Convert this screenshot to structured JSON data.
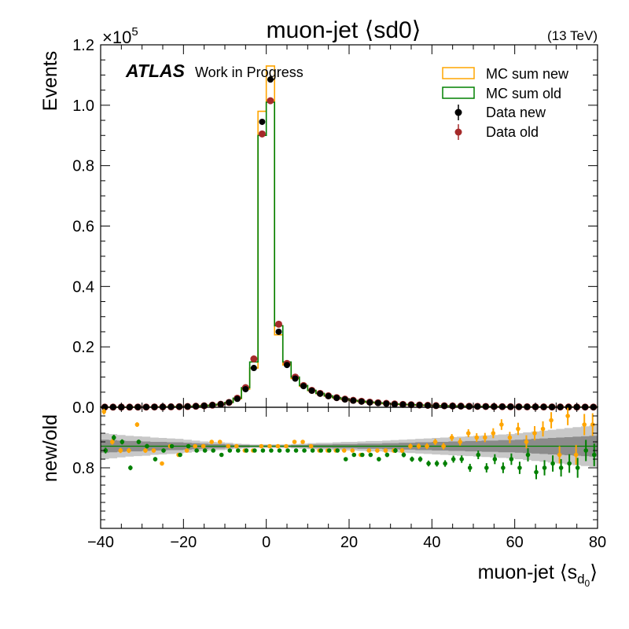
{
  "chart_data": {
    "type": "histogram-ratio",
    "title": "muon-jet ⟨sd0⟩",
    "energy_label": "(13 TeV)",
    "experiment_label": "ATLAS",
    "experiment_sublabel": "Work in Progress",
    "xlabel_prefix": "muon-jet ⟨s",
    "xlabel_sub": "d",
    "xlabel_subsub": "0",
    "xlabel_suffix": "⟩",
    "main_ylabel": "Events",
    "ratio_ylabel": "new/old",
    "yscale_label": "×10",
    "yscale_exponent": "5",
    "yscale_factor": 100000,
    "xlim": [
      -40,
      80
    ],
    "main_ylim": [
      0,
      1.2
    ],
    "ratio_ylim": [
      0.66,
      0.94
    ],
    "x_ticks": [
      -40,
      -20,
      0,
      20,
      40,
      60,
      80
    ],
    "x_tick_labels": [
      "−40",
      "−20",
      "0",
      "20",
      "40",
      "60",
      "80"
    ],
    "main_y_ticks": [
      0.0,
      0.2,
      0.4,
      0.6,
      0.8,
      1.0,
      1.2
    ],
    "main_y_tick_labels": [
      "0.0",
      "0.2",
      "0.4",
      "0.6",
      "0.8",
      "1.0",
      "1.2"
    ],
    "ratio_y_ticks": [
      0.8
    ],
    "ratio_y_tick_labels": [
      "0.8"
    ],
    "legend": {
      "placement": "top-right",
      "entries": [
        {
          "label": "MC sum new",
          "style": "box",
          "color": "#ffa500"
        },
        {
          "label": "MC sum old",
          "style": "box",
          "color": "#008000"
        },
        {
          "label": "Data new",
          "style": "marker",
          "color": "#000000"
        },
        {
          "label": "Data old",
          "style": "marker",
          "color": "#a52a2a"
        }
      ]
    },
    "colors": {
      "mc_new": "#ffa500",
      "mc_old": "#008000",
      "data_new": "#000000",
      "data_old": "#a52a2a",
      "ratio_mc": "#ffa500",
      "ratio_data": "#008000",
      "band_dark": "#8c8c8c",
      "band_light": "#c8c8c8"
    },
    "bin_edges": [
      -40,
      -38,
      -36,
      -34,
      -32,
      -30,
      -28,
      -26,
      -24,
      -22,
      -20,
      -18,
      -16,
      -14,
      -12,
      -10,
      -8,
      -6,
      -4,
      -2,
      0,
      2,
      4,
      6,
      8,
      10,
      12,
      14,
      16,
      18,
      20,
      22,
      24,
      26,
      28,
      30,
      32,
      34,
      36,
      38,
      40,
      42,
      44,
      46,
      48,
      50,
      52,
      54,
      56,
      58,
      60,
      62,
      64,
      66,
      68,
      70,
      72,
      74,
      76,
      78,
      80
    ],
    "series": [
      {
        "name": "MC sum new",
        "values": [
          0.0005,
          0.0005,
          0.0005,
          0.0006,
          0.0007,
          0.0008,
          0.001,
          0.0012,
          0.0015,
          0.002,
          0.0025,
          0.0035,
          0.005,
          0.007,
          0.01,
          0.016,
          0.028,
          0.06,
          0.13,
          0.98,
          1.13,
          0.24,
          0.14,
          0.095,
          0.07,
          0.055,
          0.045,
          0.037,
          0.031,
          0.026,
          0.022,
          0.019,
          0.016,
          0.014,
          0.012,
          0.01,
          0.009,
          0.008,
          0.007,
          0.006,
          0.005,
          0.0045,
          0.004,
          0.0035,
          0.003,
          0.0027,
          0.0024,
          0.0021,
          0.0019,
          0.0017,
          0.0015,
          0.0014,
          0.0012,
          0.0011,
          0.001,
          0.0009,
          0.0008,
          0.0007,
          0.0007,
          0.0006
        ]
      },
      {
        "name": "MC sum old",
        "values": [
          0.0005,
          0.0005,
          0.0005,
          0.0006,
          0.0007,
          0.0008,
          0.001,
          0.0012,
          0.0015,
          0.002,
          0.0025,
          0.0035,
          0.005,
          0.007,
          0.01,
          0.016,
          0.03,
          0.065,
          0.15,
          0.9,
          1.01,
          0.27,
          0.15,
          0.1,
          0.072,
          0.056,
          0.046,
          0.038,
          0.032,
          0.027,
          0.023,
          0.02,
          0.017,
          0.015,
          0.013,
          0.011,
          0.0095,
          0.0085,
          0.0075,
          0.0065,
          0.0055,
          0.005,
          0.0044,
          0.0039,
          0.0034,
          0.003,
          0.0027,
          0.0024,
          0.0021,
          0.0019,
          0.0017,
          0.0015,
          0.0014,
          0.0012,
          0.0011,
          0.001,
          0.0009,
          0.0008,
          0.0007,
          0.0007
        ]
      },
      {
        "name": "Data new",
        "values": [
          0.0005,
          0.0005,
          0.0005,
          0.0006,
          0.0007,
          0.0008,
          0.001,
          0.0012,
          0.0015,
          0.002,
          0.0025,
          0.0035,
          0.005,
          0.007,
          0.01,
          0.016,
          0.028,
          0.06,
          0.13,
          0.945,
          1.085,
          0.25,
          0.14,
          0.095,
          0.07,
          0.055,
          0.045,
          0.037,
          0.031,
          0.026,
          0.022,
          0.019,
          0.016,
          0.014,
          0.012,
          0.01,
          0.009,
          0.008,
          0.007,
          0.006,
          0.005,
          0.0045,
          0.004,
          0.0035,
          0.003,
          0.0027,
          0.0024,
          0.0021,
          0.0019,
          0.0017,
          0.0015,
          0.0014,
          0.0012,
          0.0011,
          0.001,
          0.0009,
          0.0008,
          0.0007,
          0.0007,
          0.0006
        ]
      },
      {
        "name": "Data old",
        "values": [
          0.0005,
          0.0005,
          0.0005,
          0.0006,
          0.0007,
          0.0008,
          0.001,
          0.0012,
          0.0015,
          0.002,
          0.0025,
          0.0035,
          0.005,
          0.007,
          0.01,
          0.016,
          0.03,
          0.065,
          0.16,
          0.905,
          1.015,
          0.275,
          0.145,
          0.1,
          0.072,
          0.056,
          0.046,
          0.038,
          0.032,
          0.027,
          0.023,
          0.02,
          0.017,
          0.015,
          0.013,
          0.011,
          0.0095,
          0.0085,
          0.0075,
          0.0065,
          0.0055,
          0.005,
          0.0044,
          0.0039,
          0.0034,
          0.003,
          0.0027,
          0.0024,
          0.0021,
          0.0019,
          0.0017,
          0.0015,
          0.0014,
          0.0012,
          0.0011,
          0.001,
          0.0009,
          0.0008,
          0.0007,
          0.0007
        ]
      }
    ],
    "ratio_series": [
      {
        "name": "MC sum new / MC sum old",
        "values": [
          0.93,
          0.86,
          0.84,
          0.84,
          0.9,
          0.84,
          0.84,
          0.81,
          0.85,
          0.83,
          0.84,
          0.85,
          0.85,
          0.86,
          0.86,
          0.85,
          0.85,
          0.84,
          0.84,
          0.85,
          0.85,
          0.85,
          0.85,
          0.86,
          0.86,
          0.85,
          0.84,
          0.84,
          0.84,
          0.84,
          0.84,
          0.83,
          0.84,
          0.84,
          0.84,
          0.84,
          0.84,
          0.85,
          0.85,
          0.85,
          0.86,
          0.85,
          0.87,
          0.86,
          0.88,
          0.87,
          0.87,
          0.88,
          0.9,
          0.87,
          0.89,
          0.86,
          0.88,
          0.89,
          0.91,
          0.83,
          0.92,
          0.83,
          0.9,
          0.9
        ]
      },
      {
        "name": "Data new / Data old",
        "values": [
          0.84,
          0.87,
          0.86,
          0.8,
          0.86,
          0.85,
          0.82,
          0.84,
          0.85,
          0.83,
          0.85,
          0.84,
          0.84,
          0.84,
          0.83,
          0.84,
          0.84,
          0.84,
          0.84,
          0.84,
          0.84,
          0.84,
          0.84,
          0.84,
          0.84,
          0.84,
          0.84,
          0.84,
          0.84,
          0.82,
          0.83,
          0.83,
          0.83,
          0.82,
          0.83,
          0.84,
          0.83,
          0.82,
          0.82,
          0.81,
          0.81,
          0.81,
          0.82,
          0.82,
          0.8,
          0.83,
          0.8,
          0.82,
          0.8,
          0.82,
          0.8,
          0.83,
          0.79,
          0.8,
          0.81,
          0.8,
          0.81,
          0.8,
          0.84,
          0.83
        ]
      }
    ],
    "ratio_band": {
      "inner_halfwidth": [
        0.015,
        0.014,
        0.013,
        0.012,
        0.012,
        0.011,
        0.01,
        0.01,
        0.009,
        0.009,
        0.008,
        0.007,
        0.006,
        0.005,
        0.005,
        0.004,
        0.003,
        0.003,
        0.002,
        0.002,
        0.002,
        0.002,
        0.002,
        0.003,
        0.003,
        0.004,
        0.004,
        0.004,
        0.005,
        0.005,
        0.005,
        0.006,
        0.006,
        0.006,
        0.007,
        0.007,
        0.008,
        0.008,
        0.009,
        0.009,
        0.01,
        0.01,
        0.011,
        0.011,
        0.012,
        0.012,
        0.013,
        0.013,
        0.014,
        0.014,
        0.015,
        0.016,
        0.017,
        0.018,
        0.019,
        0.02,
        0.021,
        0.022,
        0.023,
        0.024
      ],
      "outer_halfwidth": [
        0.03,
        0.028,
        0.026,
        0.024,
        0.023,
        0.022,
        0.02,
        0.019,
        0.018,
        0.017,
        0.015,
        0.013,
        0.011,
        0.01,
        0.009,
        0.008,
        0.006,
        0.005,
        0.004,
        0.004,
        0.004,
        0.004,
        0.004,
        0.005,
        0.006,
        0.007,
        0.008,
        0.008,
        0.009,
        0.01,
        0.01,
        0.011,
        0.012,
        0.012,
        0.013,
        0.014,
        0.015,
        0.016,
        0.017,
        0.018,
        0.019,
        0.02,
        0.021,
        0.022,
        0.023,
        0.024,
        0.025,
        0.026,
        0.027,
        0.028,
        0.03,
        0.032,
        0.034,
        0.036,
        0.038,
        0.04,
        0.042,
        0.044,
        0.046,
        0.048
      ]
    }
  }
}
